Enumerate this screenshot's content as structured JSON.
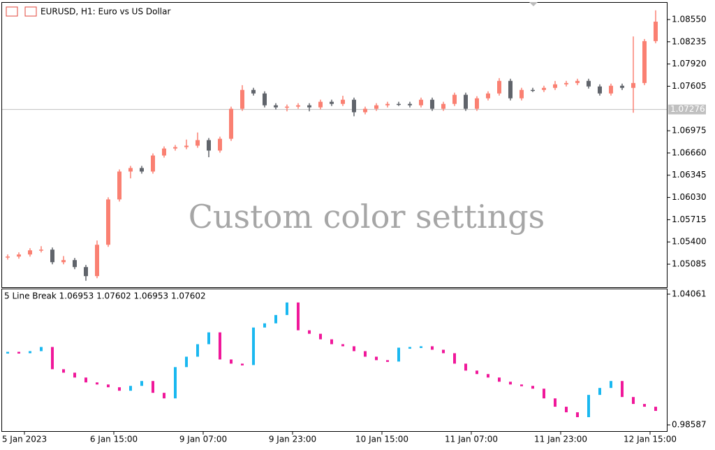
{
  "chart_data": [
    {
      "type": "candlestick",
      "title": "EURUSD, H1:  Euro vs US Dollar",
      "annotation": "Custom color settings",
      "up_color": "#fa8072",
      "down_color": "#60646b",
      "current_price": {
        "value": 1.07276,
        "label": "1.07276"
      },
      "xlim": [
        -0.5,
        59
      ],
      "ylim": [
        1.04759,
        1.08787
      ],
      "yticks": [
        {
          "value": 1.0855,
          "label": "1.08550"
        },
        {
          "value": 1.08235,
          "label": "1.08235"
        },
        {
          "value": 1.0792,
          "label": "1.07920"
        },
        {
          "value": 1.07605,
          "label": "1.07605"
        },
        {
          "value": 1.06975,
          "label": "1.06975"
        },
        {
          "value": 1.0666,
          "label": "1.06660"
        },
        {
          "value": 1.06345,
          "label": "1.06345"
        },
        {
          "value": 1.0603,
          "label": "1.06030"
        },
        {
          "value": 1.05715,
          "label": "1.05715"
        },
        {
          "value": 1.054,
          "label": "1.05400"
        },
        {
          "value": 1.05085,
          "label": "1.05085"
        }
      ],
      "open": [
        1.0518,
        1.05193,
        1.05222,
        1.05281,
        1.05291,
        1.05113,
        1.05143,
        1.05044,
        1.04916,
        1.0536,
        1.06002,
        1.06397,
        1.06447,
        1.06397,
        1.06624,
        1.06723,
        1.06743,
        1.06763,
        1.06842,
        1.06694,
        1.06861,
        1.07286,
        1.07553,
        1.07503,
        1.07335,
        1.07306,
        1.07316,
        1.07335,
        1.07306,
        1.07385,
        1.07355,
        1.07414,
        1.07237,
        1.07286,
        1.07335,
        1.07355,
        1.07355,
        1.07335,
        1.07414,
        1.07286,
        1.07355,
        1.07484,
        1.07286,
        1.07434,
        1.07503,
        1.07681,
        1.07434,
        1.07553,
        1.07553,
        1.07582,
        1.07632,
        1.07651,
        1.07681,
        1.07602,
        1.07503,
        1.07612,
        1.07582,
        1.07651,
        1.08244
      ],
      "high": [
        1.05223,
        1.05252,
        1.05311,
        1.0534,
        1.05321,
        1.052,
        1.05173,
        1.05074,
        1.0542,
        1.06032,
        1.06427,
        1.06477,
        1.06477,
        1.06654,
        1.06753,
        1.06773,
        1.0685,
        1.0695,
        1.06872,
        1.06891,
        1.07316,
        1.0762,
        1.07583,
        1.07533,
        1.07365,
        1.07346,
        1.07365,
        1.07365,
        1.07415,
        1.07415,
        1.0747,
        1.07444,
        1.07316,
        1.07365,
        1.07385,
        1.07385,
        1.07385,
        1.07444,
        1.07444,
        1.07385,
        1.07514,
        1.07514,
        1.07464,
        1.07533,
        1.0772,
        1.07711,
        1.07583,
        1.07583,
        1.07612,
        1.0768,
        1.07681,
        1.07711,
        1.07711,
        1.07632,
        1.07642,
        1.07642,
        1.0831,
        1.08274,
        1.0868
      ],
      "low": [
        1.0515,
        1.05163,
        1.05192,
        1.05251,
        1.05083,
        1.05083,
        1.05014,
        1.0485,
        1.04886,
        1.0533,
        1.05972,
        1.063,
        1.06367,
        1.06367,
        1.06594,
        1.06693,
        1.06713,
        1.06733,
        1.066,
        1.06664,
        1.06831,
        1.07256,
        1.07473,
        1.07305,
        1.07276,
        1.0725,
        1.07286,
        1.0725,
        1.07276,
        1.07325,
        1.07325,
        1.0718,
        1.07207,
        1.07256,
        1.07305,
        1.07325,
        1.07305,
        1.07305,
        1.07256,
        1.07256,
        1.07325,
        1.07256,
        1.07256,
        1.07404,
        1.07473,
        1.07404,
        1.07404,
        1.07523,
        1.07523,
        1.07552,
        1.07602,
        1.07621,
        1.07572,
        1.07473,
        1.07473,
        1.07552,
        1.0723,
        1.07621,
        1.08214
      ],
      "close": [
        1.05193,
        1.05222,
        1.05281,
        1.05291,
        1.05113,
        1.05143,
        1.05044,
        1.04916,
        1.0536,
        1.06002,
        1.06397,
        1.06447,
        1.06397,
        1.06624,
        1.06723,
        1.06743,
        1.06763,
        1.06842,
        1.06694,
        1.06861,
        1.07286,
        1.07553,
        1.07503,
        1.07335,
        1.07306,
        1.07316,
        1.07335,
        1.07306,
        1.07385,
        1.07355,
        1.07414,
        1.07237,
        1.07286,
        1.07335,
        1.07355,
        1.07355,
        1.07335,
        1.07414,
        1.07286,
        1.07355,
        1.07484,
        1.07286,
        1.07434,
        1.07503,
        1.07681,
        1.07434,
        1.07553,
        1.07553,
        1.07582,
        1.07632,
        1.07651,
        1.07681,
        1.07602,
        1.07503,
        1.07612,
        1.07582,
        1.07651,
        1.08244,
        1.0852
      ]
    },
    {
      "type": "line-break",
      "title": "5 Line Break 1.06953 1.07602 1.06953 1.07602",
      "up_color": "#1ab8f0",
      "down_color": "#f0189a",
      "xlim": [
        -0.5,
        59
      ],
      "ylim": [
        0.98325,
        1.04265
      ],
      "yticks": [
        {
          "value": 1.04061,
          "label": "1.04061"
        },
        {
          "value": 0.98587,
          "label": "0.98587"
        }
      ],
      "xticks": [
        {
          "value": 1.5,
          "label": "5 Jan 2023"
        },
        {
          "value": 9.5,
          "label": "6 Jan 15:00"
        },
        {
          "value": 17.5,
          "label": "9 Jan 07:00"
        },
        {
          "value": 25.5,
          "label": "9 Jan 23:00"
        },
        {
          "value": 33.5,
          "label": "10 Jan 15:00"
        },
        {
          "value": 41.5,
          "label": "11 Jan 07:00"
        },
        {
          "value": 49.5,
          "label": "11 Jan 23:00"
        },
        {
          "value": 57.5,
          "label": "12 Jan 15:00"
        }
      ],
      "values": [
        1.01646,
        1.01588,
        1.01675,
        1.01849,
        1.00918,
        1.00773,
        1.00569,
        1.00365,
        1.00278,
        1.00162,
        1.00016,
        1.0022,
        1.00424,
        0.99929,
        0.99696,
        1.01006,
        1.01442,
        1.01966,
        1.02461,
        1.01326,
        1.01151,
        1.01093,
        1.02664,
        1.02839,
        1.03188,
        1.03712,
        1.02548,
        1.02402,
        1.0217,
        1.01966,
        1.01879,
        1.01675,
        1.01442,
        1.01297,
        1.01238,
        1.0182,
        1.01849,
        1.01879,
        1.01733,
        1.01588,
        1.01151,
        1.0086,
        1.00715,
        1.00569,
        1.00394,
        1.00278,
        1.0022,
        1.00103,
        0.99696,
        0.99347,
        0.99114,
        0.9891,
        0.99842,
        1.00133,
        1.00424,
        0.99754,
        0.99463,
        0.99347,
        0.99172
      ]
    }
  ]
}
